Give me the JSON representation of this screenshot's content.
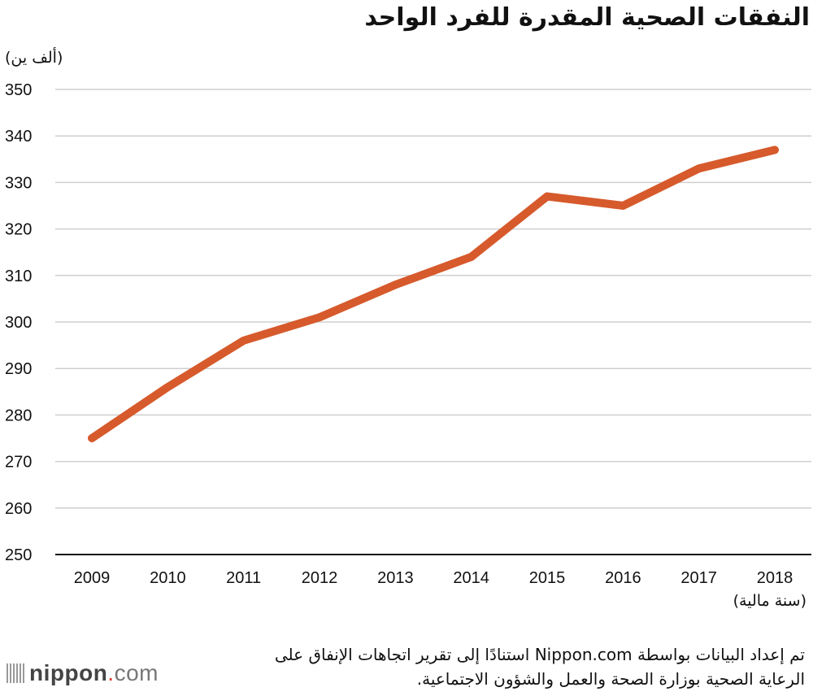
{
  "chart_data": {
    "type": "line",
    "title": "النفقات الصحية المقدرة للفرد الواحد",
    "ylabel": "(ألف ين)",
    "xlabel": "(سنة مالية)",
    "categories": [
      "2009",
      "2010",
      "2011",
      "2012",
      "2013",
      "2014",
      "2015",
      "2016",
      "2017",
      "2018"
    ],
    "values": [
      275,
      286,
      296,
      301,
      308,
      314,
      327,
      325,
      333,
      337
    ],
    "ylim": [
      250,
      350
    ],
    "yticks": [
      250,
      260,
      270,
      280,
      290,
      300,
      310,
      320,
      330,
      340,
      350
    ],
    "grid": true,
    "legend": "none",
    "line_color": "#d65a2c"
  },
  "source": {
    "line1": "تم إعداد البيانات بواسطة Nippon.com استنادًا إلى تقرير اتجاهات الإنفاق على",
    "line2": "الرعاية الصحية بوزارة الصحة والعمل والشؤون الاجتماعية."
  },
  "logo": {
    "main": "nippon",
    "dot": ".",
    "suffix": "com"
  }
}
